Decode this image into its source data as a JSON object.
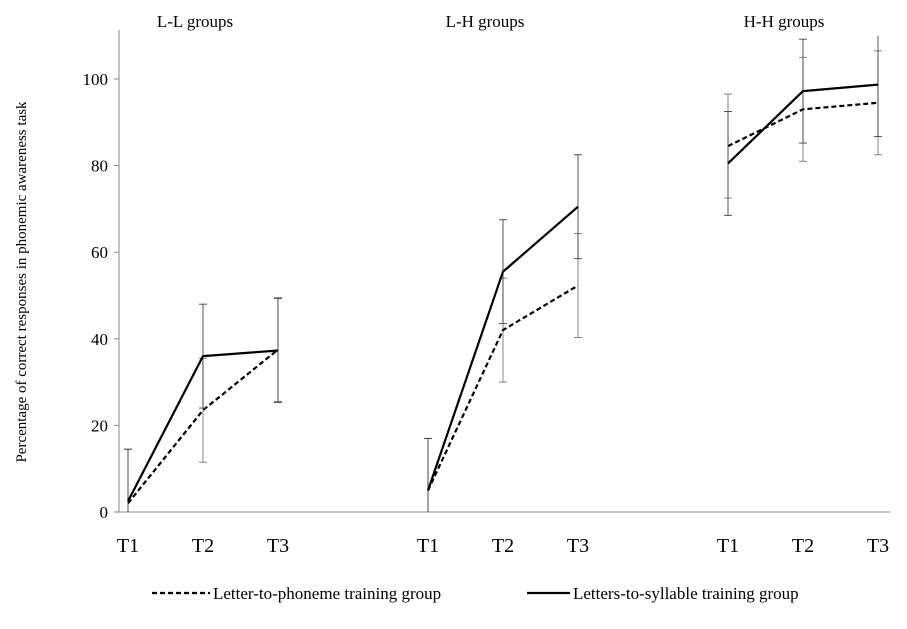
{
  "chart_data": {
    "type": "line",
    "ylabel": "Percentage of correct responses in phonemic awareness task",
    "xlabel": "",
    "ylim": [
      0,
      110
    ],
    "yticks": [
      0,
      20,
      40,
      60,
      80,
      100
    ],
    "grid": false,
    "legend_position": "bottom",
    "categories": [
      "T1",
      "T2",
      "T3"
    ],
    "panels": [
      {
        "title": "L-L groups",
        "series": [
          {
            "name": "Letter-to-phoneme training group",
            "style": "dashed",
            "values": [
              2,
              23.5,
              37.5
            ],
            "error": [
              12.5,
              12,
              12
            ]
          },
          {
            "name": "Letters-to-syllable training group",
            "style": "solid",
            "values": [
              2.5,
              36,
              37.3
            ],
            "error": [
              12,
              12,
              12
            ]
          }
        ]
      },
      {
        "title": "L-H groups",
        "series": [
          {
            "name": "Letter-to-phoneme training group",
            "style": "dashed",
            "values": [
              5,
              42,
              52.3
            ],
            "error": [
              12,
              12,
              12
            ]
          },
          {
            "name": "Letters-to-syllable training group",
            "style": "solid",
            "values": [
              5,
              55.5,
              70.5
            ],
            "error": [
              12,
              12,
              12
            ]
          }
        ]
      },
      {
        "title": "H-H groups",
        "series": [
          {
            "name": "Letter-to-phoneme training group",
            "style": "dashed",
            "values": [
              84.5,
              93,
              94.5
            ],
            "error": [
              12,
              12,
              12
            ]
          },
          {
            "name": "Letters-to-syllable training group",
            "style": "solid",
            "values": [
              80.5,
              97.2,
              98.7
            ],
            "error": [
              12,
              12,
              12
            ]
          }
        ]
      }
    ]
  },
  "legend": {
    "dashed_label": "Letter-to-phoneme training group",
    "solid_label": "Letters-to-syllable training group"
  }
}
